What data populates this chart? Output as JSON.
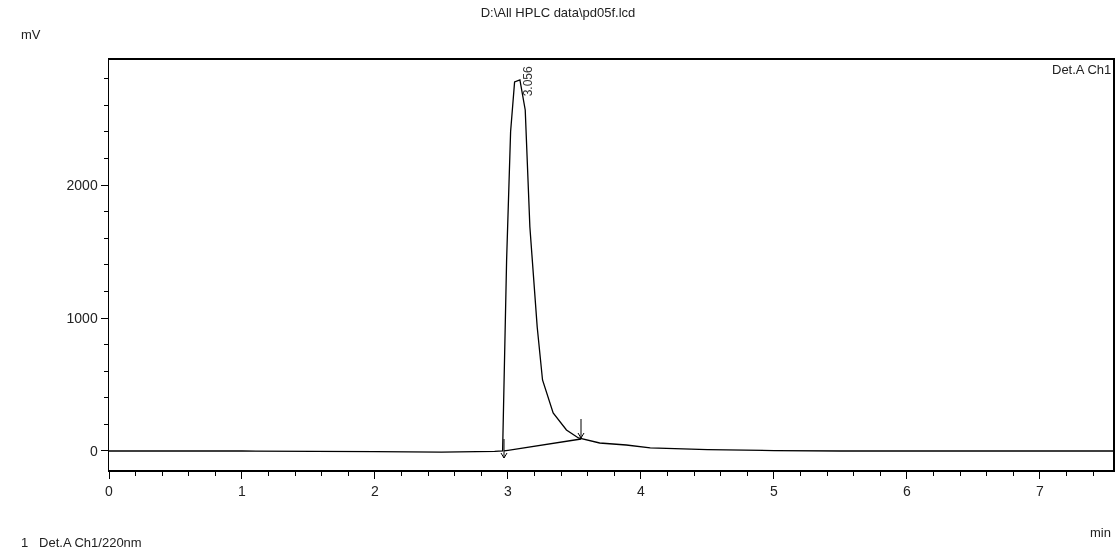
{
  "chart_data": {
    "type": "line",
    "title": "D:\\All HPLC data\\pd05f.lcd",
    "xlabel": "min",
    "ylabel": "mV",
    "xlim": [
      0,
      7.55
    ],
    "ylim": [
      -143,
      2940
    ],
    "xticks": [
      0,
      {
        "value": 0.2,
        "label": null
      },
      {
        "value": 0.4,
        "label": null
      },
      {
        "value": 0.6,
        "label": null
      },
      {
        "value": 0.8,
        "label": null
      },
      1,
      {
        "value": 1.2,
        "label": null
      },
      {
        "value": 1.4,
        "label": null
      },
      {
        "value": 1.6,
        "label": null
      },
      {
        "value": 1.8,
        "label": null
      },
      2,
      {
        "value": 2.2,
        "label": null
      },
      {
        "value": 2.4,
        "label": null
      },
      {
        "value": 2.6,
        "label": null
      },
      {
        "value": 2.8,
        "label": null
      },
      3,
      {
        "value": 3.2,
        "label": null
      },
      {
        "value": 3.4,
        "label": null
      },
      {
        "value": 3.6,
        "label": null
      },
      {
        "value": 3.8,
        "label": null
      },
      4,
      {
        "value": 4.2,
        "label": null
      },
      {
        "value": 4.4,
        "label": null
      },
      {
        "value": 4.6,
        "label": null
      },
      {
        "value": 4.8,
        "label": null
      },
      5,
      {
        "value": 5.2,
        "label": null
      },
      {
        "value": 5.4,
        "label": null
      },
      {
        "value": 5.6,
        "label": null
      },
      {
        "value": 5.8,
        "label": null
      },
      6,
      {
        "value": 6.2,
        "label": null
      },
      {
        "value": 6.4,
        "label": null
      },
      {
        "value": 6.6,
        "label": null
      },
      {
        "value": 6.8,
        "label": null
      },
      7,
      {
        "value": 7.2,
        "label": null
      },
      {
        "value": 7.4,
        "label": null
      }
    ],
    "yticks": [
      0,
      {
        "value": 200,
        "label": null
      },
      {
        "value": 400,
        "label": null
      },
      {
        "value": 600,
        "label": null
      },
      {
        "value": 800,
        "label": null
      },
      1000,
      {
        "value": 1200,
        "label": null
      },
      {
        "value": 1400,
        "label": null
      },
      {
        "value": 1600,
        "label": null
      },
      {
        "value": 1800,
        "label": null
      },
      2000,
      {
        "value": 2200,
        "label": null
      },
      {
        "value": 2400,
        "label": null
      },
      {
        "value": 2600,
        "label": null
      },
      {
        "value": 2800,
        "label": null
      }
    ],
    "grid": false,
    "marker": "none",
    "line_style": "solid",
    "series": [
      {
        "color": "#000000",
        "x": [
          0,
          1,
          2,
          2.5,
          2.9,
          2.96,
          2.99,
          3.02,
          3.05,
          3.09,
          3.13,
          3.165,
          3.22,
          3.26,
          3.34,
          3.44,
          3.53,
          3.69,
          3.89,
          4.07,
          4.5,
          5,
          5.5,
          7.55
        ],
        "values": [
          0,
          0,
          -5,
          -8,
          -3,
          0,
          1436,
          2400,
          2775,
          2790,
          2564,
          1684,
          932,
          534,
          286,
          158,
          98,
          60,
          45,
          23,
          10,
          3,
          0,
          0
        ]
      },
      {
        "color": "#000000",
        "x": [
          2.97,
          3.55
        ],
        "values": [
          0,
          90
        ]
      }
    ],
    "annotations": [
      {
        "text": "3.056",
        "x": 3.056,
        "y": 2790
      },
      "Det.A Ch1",
      "1   Det.A Ch1/220nm"
    ]
  }
}
